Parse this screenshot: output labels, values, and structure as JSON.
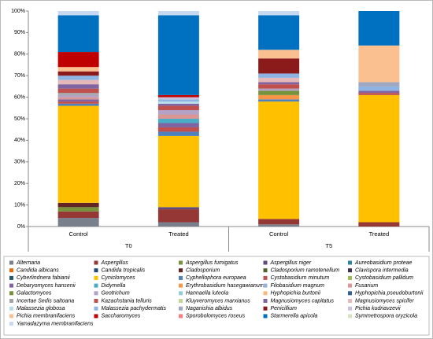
{
  "chart_data": {
    "type": "stacked_bar_100",
    "categories": [
      "Control",
      "Treated",
      "Control",
      "Treated"
    ],
    "groups": [
      "T0",
      "T5"
    ],
    "ylim": [
      0,
      100
    ],
    "yticks": [
      {
        "value": 0,
        "label": "0%"
      },
      {
        "value": 10,
        "label": "10%"
      },
      {
        "value": 20,
        "label": "20%"
      },
      {
        "value": 30,
        "label": "30%"
      },
      {
        "value": 40,
        "label": "40%"
      },
      {
        "value": 50,
        "label": "50%"
      },
      {
        "value": 60,
        "label": "60%"
      },
      {
        "value": 70,
        "label": "70%"
      },
      {
        "value": 80,
        "label": "80%"
      },
      {
        "value": 90,
        "label": "90%"
      },
      {
        "value": 100,
        "label": "100%"
      }
    ],
    "grid": false,
    "series": [
      {
        "name": "Alternaria",
        "color": "#7a7f8c",
        "values": [
          4,
          2,
          1,
          0
        ]
      },
      {
        "name": "Aspergillus",
        "color": "#953735",
        "values": [
          3,
          6,
          2.5,
          2
        ]
      },
      {
        "name": "Aspergillus fumigatus",
        "color": "#77933c",
        "values": [
          2,
          0,
          0,
          0
        ]
      },
      {
        "name": "Aspergillus niger",
        "color": "#604a7b",
        "values": [
          0,
          1,
          0,
          0
        ]
      },
      {
        "name": "Aureobasidium proteae",
        "color": "#31859c",
        "values": [
          0,
          0,
          0,
          0
        ]
      },
      {
        "name": "Candida albicans",
        "color": "#e46c0a",
        "values": [
          0,
          0,
          0,
          0
        ]
      },
      {
        "name": "Candida tropicalis",
        "color": "#1f497d",
        "values": [
          0,
          0,
          0,
          0
        ]
      },
      {
        "name": "Cladosporium",
        "color": "#632523",
        "values": [
          2,
          0,
          0,
          0
        ]
      },
      {
        "name": "Cladosporium ramotenellum",
        "color": "#4f6228",
        "values": [
          0,
          0,
          0,
          0
        ]
      },
      {
        "name": "Clavispora intermedia",
        "color": "#3f3151",
        "values": [
          0,
          0,
          0,
          0
        ]
      },
      {
        "name": "Cyberlindnera fabianii",
        "color": "#215968",
        "values": [
          0,
          0,
          0,
          0
        ]
      },
      {
        "name": "Cyniclomyces",
        "color": "#ffc000",
        "values": [
          45,
          33,
          54.5,
          59
        ]
      },
      {
        "name": "Cyphellophora europaea",
        "color": "#4f81bd",
        "values": [
          1,
          2,
          1,
          0
        ]
      },
      {
        "name": "Cystobasidium minutum",
        "color": "#c0504d",
        "values": [
          1,
          2,
          0,
          0
        ]
      },
      {
        "name": "Cystobasidium pallidum",
        "color": "#9bbb59",
        "values": [
          0,
          0,
          0,
          0
        ]
      },
      {
        "name": "Debaryomyces hansenii",
        "color": "#8064a2",
        "values": [
          1,
          2,
          0,
          0
        ]
      },
      {
        "name": "Didymella",
        "color": "#4bacc6",
        "values": [
          0,
          2,
          0,
          0
        ]
      },
      {
        "name": "Erythrobasidium hasegawianum",
        "color": "#f79646",
        "values": [
          0,
          0,
          2,
          0
        ]
      },
      {
        "name": "Filobasidium magnum",
        "color": "#95b3d7",
        "values": [
          0,
          0,
          0,
          0
        ]
      },
      {
        "name": "Fusarium",
        "color": "#d99694",
        "values": [
          1,
          2,
          0,
          0
        ]
      },
      {
        "name": "Galactomyces",
        "color": "#76923c",
        "values": [
          0,
          0,
          2,
          0
        ]
      },
      {
        "name": "Geotrichum",
        "color": "#b3a2c7",
        "values": [
          1,
          2,
          1,
          0
        ]
      },
      {
        "name": "Hannaella luteola",
        "color": "#93cddd",
        "values": [
          0,
          0,
          0,
          0
        ]
      },
      {
        "name": "Hyphopichia burtonii",
        "color": "#fab97a",
        "values": [
          0,
          0,
          0,
          0
        ]
      },
      {
        "name": "Hyphopichia pseudoburtonii",
        "color": "#376092",
        "values": [
          0,
          0,
          0,
          0
        ]
      },
      {
        "name": "Incertae Sedis saitoana",
        "color": "#a5a5a5",
        "values": [
          1,
          0,
          0,
          0
        ]
      },
      {
        "name": "Kazachstania telluris",
        "color": "#c0504d",
        "values": [
          2,
          2,
          2,
          1
        ]
      },
      {
        "name": "Kluyveromyces marxianus",
        "color": "#c3d69b",
        "values": [
          0,
          0,
          0,
          0
        ]
      },
      {
        "name": "Magnusiomyces capitatus",
        "color": "#8064a2",
        "values": [
          2,
          1,
          1,
          1
        ]
      },
      {
        "name": "Magnusiomyces spicifer",
        "color": "#e6b9b8",
        "values": [
          2,
          0,
          2,
          0
        ]
      },
      {
        "name": "Malassezia globosa",
        "color": "#b7dee8",
        "values": [
          0,
          1,
          0,
          0
        ]
      },
      {
        "name": "Malassezia pachydermatis",
        "color": "#8eb4e3",
        "values": [
          2,
          1,
          2,
          2
        ]
      },
      {
        "name": "Naganishia albidus",
        "color": "#9fa8c0",
        "values": [
          0,
          0,
          0,
          2
        ]
      },
      {
        "name": "Penicillium",
        "color": "#8b1a1a",
        "values": [
          2,
          0,
          7,
          0
        ]
      },
      {
        "name": "Pichia kudriavzevii",
        "color": "#ccc1da",
        "values": [
          0,
          1,
          0,
          0
        ]
      },
      {
        "name": "Pichia membranifaciens",
        "color": "#fac090",
        "values": [
          2,
          0,
          4,
          17
        ]
      },
      {
        "name": "Saccharomyces",
        "color": "#c00000",
        "values": [
          7,
          1,
          0,
          0
        ]
      },
      {
        "name": "Sporobolomyces roseus",
        "color": "#ff7c80",
        "values": [
          0,
          0,
          0,
          0
        ]
      },
      {
        "name": "Starmerella apicola",
        "color": "#0070c0",
        "values": [
          17,
          37,
          16,
          16
        ]
      },
      {
        "name": "Symmetrospora oryzicola",
        "color": "#d7e4bd",
        "values": [
          0,
          0,
          0,
          0
        ]
      },
      {
        "name": "Yamadazyma membranifaciens",
        "color": "#c6d9f1",
        "values": [
          2,
          2,
          2,
          0
        ]
      }
    ]
  }
}
